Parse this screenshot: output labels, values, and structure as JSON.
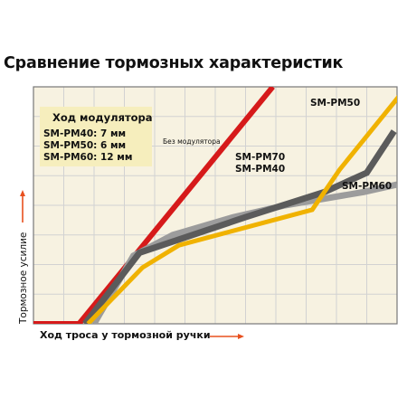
{
  "title": "Сравнение тормозных характеристик",
  "colors": {
    "background": "#f7f2e1",
    "grid": "#d2d2d2",
    "border": "#777777",
    "arrow": "#e8501e",
    "legend_box": "#f6eebd"
  },
  "chart_data": {
    "type": "line",
    "xlabel": "Ход троса у тормозной ручки",
    "ylabel": "Тормозное усилие",
    "xlim": [
      0,
      12
    ],
    "ylim": [
      0,
      8
    ],
    "grid": true,
    "legend_box": {
      "heading": "Ход модулятора",
      "lines": [
        "SM-PM40: 7 мм",
        "SM-PM50: 6 мм",
        "SM-PM60: 12 мм"
      ]
    },
    "series": [
      {
        "name": "Без модулятора",
        "color": "#d61a1a",
        "points": [
          [
            -0.6,
            0
          ],
          [
            1.5,
            0
          ],
          [
            7.9,
            8
          ]
        ]
      },
      {
        "name": "SM-PM60",
        "color": "#9c9c9c",
        "points": [
          [
            2.0,
            0
          ],
          [
            3.3,
            2.3
          ],
          [
            4.6,
            3.0
          ],
          [
            6.6,
            3.6
          ],
          [
            8.3,
            4.0
          ],
          [
            10.9,
            4.45
          ],
          [
            12.0,
            4.7
          ]
        ]
      },
      {
        "name": "SM-PM70 / SM-PM40",
        "color": "#5b5b5b",
        "points": [
          [
            1.7,
            0
          ],
          [
            3.5,
            2.4
          ],
          [
            7.0,
            3.6
          ],
          [
            9.6,
            4.45
          ],
          [
            11.0,
            5.1
          ],
          [
            11.9,
            6.5
          ]
        ]
      },
      {
        "name": "SM-PM50",
        "color": "#f0b200",
        "points": [
          [
            1.8,
            0
          ],
          [
            3.6,
            1.9
          ],
          [
            4.8,
            2.65
          ],
          [
            9.2,
            3.85
          ],
          [
            10.1,
            5.2
          ],
          [
            12.0,
            7.6
          ],
          [
            12.3,
            8.0
          ]
        ]
      }
    ],
    "annotations": [
      {
        "text": "SM-PM50",
        "series": "SM-PM50"
      },
      {
        "text": "Без модулятора",
        "series": "Без модулятора"
      },
      {
        "text": "SM-PM70",
        "series": "SM-PM70 / SM-PM40"
      },
      {
        "text": "SM-PM40",
        "series": "SM-PM70 / SM-PM40"
      },
      {
        "text": "SM-PM60",
        "series": "SM-PM60"
      }
    ]
  }
}
